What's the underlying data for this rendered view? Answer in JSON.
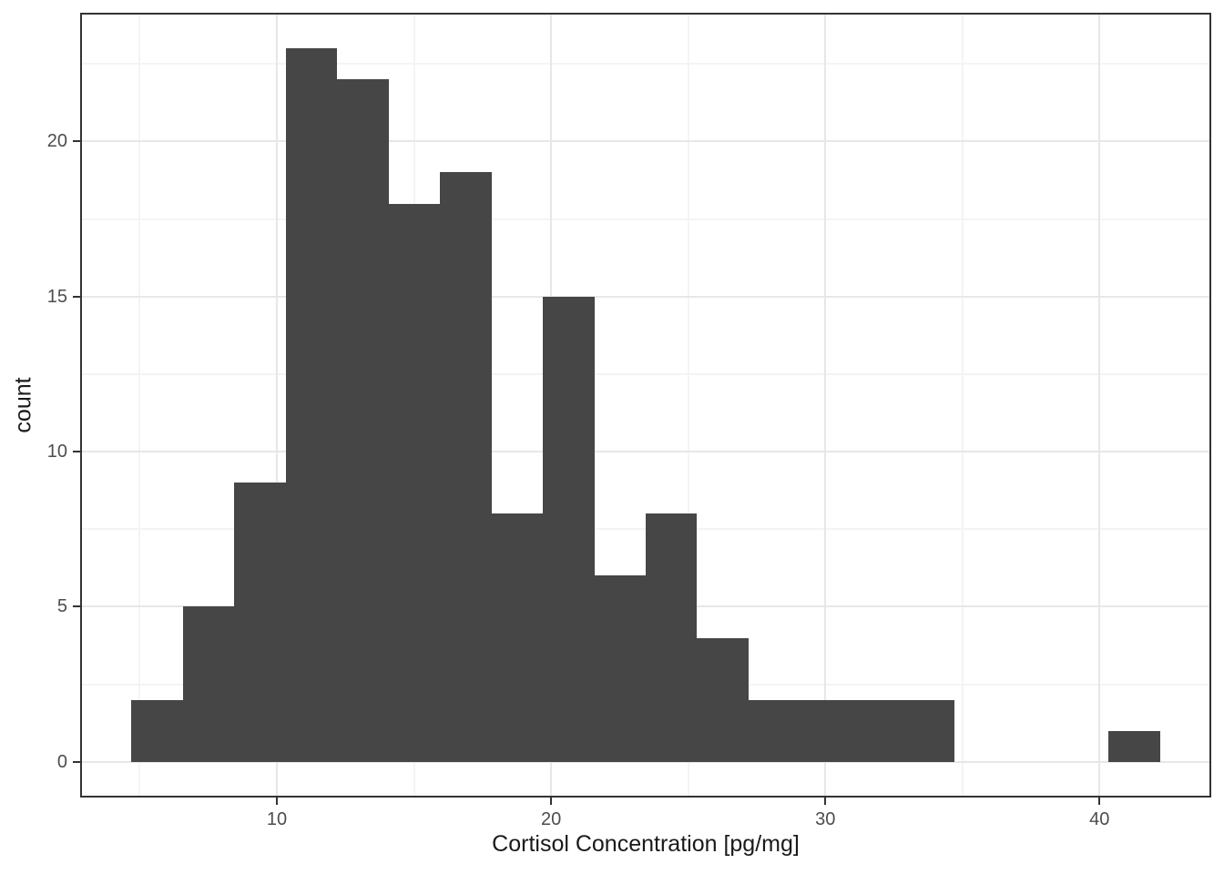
{
  "chart_data": {
    "type": "bar",
    "subtype": "histogram",
    "title": "",
    "xlabel": "Cortisol Concentration [pg/mg]",
    "ylabel": "count",
    "bar_color": "#464646",
    "panel_background": "#ffffff",
    "panel_border_color": "#333333",
    "grid_major_color": "#e7e7e7",
    "grid_minor_color": "#f4f4f4",
    "tick_color": "#333333",
    "tick_label_color": "#4d4d4d",
    "axis_title_color": "#1a1a1a",
    "grid": "on",
    "legend": "none",
    "xlim": [
      2.825,
      44.075
    ],
    "ylim": [
      -1.15,
      24.15
    ],
    "x_major_ticks": [
      10,
      20,
      30,
      40
    ],
    "x_minor_gridlines": [
      5,
      15,
      25,
      35
    ],
    "y_major_ticks": [
      0,
      5,
      10,
      15,
      20
    ],
    "y_minor_gridlines": [
      2.5,
      7.5,
      12.5,
      17.5,
      22.5
    ],
    "bin_start": 4.7,
    "bin_width": 1.875,
    "counts": [
      2,
      5,
      9,
      23,
      22,
      18,
      19,
      8,
      15,
      6,
      8,
      4,
      2,
      2,
      2,
      2,
      0,
      0,
      0,
      1
    ],
    "bins": [
      {
        "from": 4.7,
        "to": 6.575,
        "count": 2
      },
      {
        "from": 6.575,
        "to": 8.45,
        "count": 5
      },
      {
        "from": 8.45,
        "to": 10.325,
        "count": 9
      },
      {
        "from": 10.325,
        "to": 12.2,
        "count": 23
      },
      {
        "from": 12.2,
        "to": 14.075,
        "count": 22
      },
      {
        "from": 14.075,
        "to": 15.95,
        "count": 18
      },
      {
        "from": 15.95,
        "to": 17.825,
        "count": 19
      },
      {
        "from": 17.825,
        "to": 19.7,
        "count": 8
      },
      {
        "from": 19.7,
        "to": 21.575,
        "count": 15
      },
      {
        "from": 21.575,
        "to": 23.45,
        "count": 6
      },
      {
        "from": 23.45,
        "to": 25.325,
        "count": 8
      },
      {
        "from": 25.325,
        "to": 27.2,
        "count": 4
      },
      {
        "from": 27.2,
        "to": 29.075,
        "count": 2
      },
      {
        "from": 29.075,
        "to": 30.95,
        "count": 2
      },
      {
        "from": 30.95,
        "to": 32.825,
        "count": 2
      },
      {
        "from": 32.825,
        "to": 34.7,
        "count": 2
      },
      {
        "from": 34.7,
        "to": 36.575,
        "count": 0
      },
      {
        "from": 36.575,
        "to": 38.45,
        "count": 0
      },
      {
        "from": 38.45,
        "to": 40.325,
        "count": 0
      },
      {
        "from": 40.325,
        "to": 42.2,
        "count": 1
      }
    ]
  }
}
